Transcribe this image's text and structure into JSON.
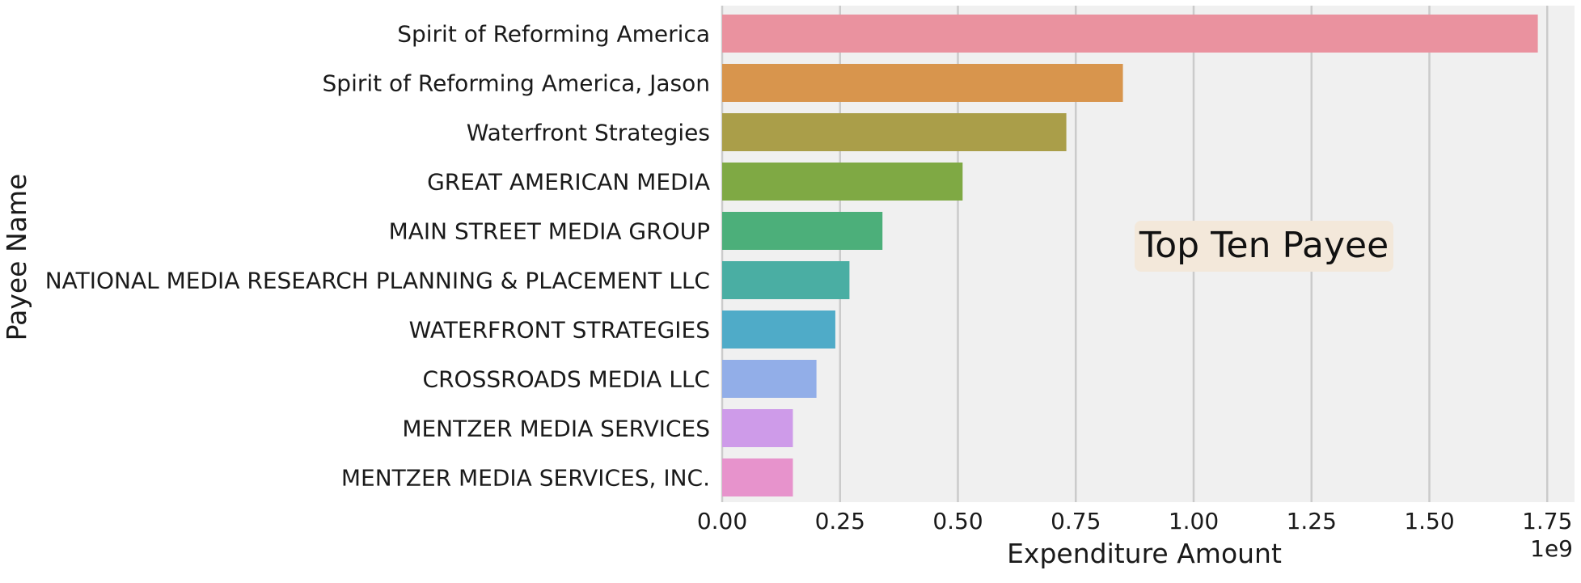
{
  "chart_data": {
    "type": "bar",
    "orientation": "horizontal",
    "categories": [
      "Spirit of Reforming America",
      "Spirit of Reforming America, Jason",
      "Waterfront Strategies",
      "GREAT AMERICAN MEDIA",
      "MAIN STREET MEDIA GROUP",
      "NATIONAL MEDIA RESEARCH PLANNING & PLACEMENT LLC",
      "WATERFRONT STRATEGIES",
      "CROSSROADS MEDIA LLC",
      "MENTZER MEDIA SERVICES",
      "MENTZER MEDIA SERVICES, INC."
    ],
    "values": [
      1.73,
      0.85,
      0.73,
      0.51,
      0.34,
      0.27,
      0.24,
      0.2,
      0.15,
      0.15
    ],
    "colors": [
      "#ea929f",
      "#d8954d",
      "#aa9e49",
      "#7fa944",
      "#4caf7a",
      "#4aaea3",
      "#4fabc8",
      "#92aee8",
      "#ce9be9",
      "#e793cc"
    ],
    "xlabel": "Expenditure Amount",
    "ylabel": "Payee Name",
    "x_offset_label": "1e9",
    "xticks": [
      "0.00",
      "0.25",
      "0.50",
      "0.75",
      "1.00",
      "1.25",
      "1.50",
      "1.75"
    ],
    "xlim": [
      0,
      1.8
    ],
    "annotation": "Top Ten Payee",
    "grid": "vertical",
    "colors_theme": {
      "plot_bg": "#f0f0f0",
      "grid": "#cbcbcb",
      "annotation_box": "#f3e8da"
    }
  }
}
